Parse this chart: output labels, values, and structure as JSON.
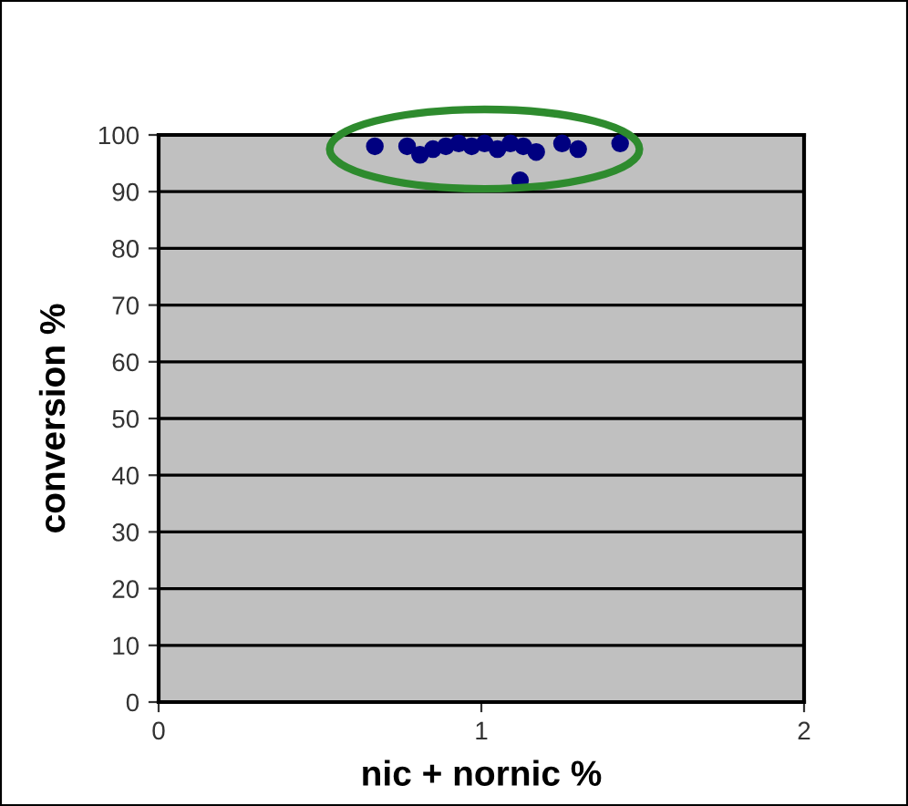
{
  "chart_data": {
    "type": "scatter",
    "xlabel": "nic + nornic %",
    "ylabel": "conversion %",
    "series": [
      {
        "color": "#000080",
        "marker": "circle",
        "x": [
          0.67,
          0.77,
          0.81,
          0.85,
          0.89,
          0.93,
          0.97,
          1.01,
          1.05,
          1.09,
          1.13,
          1.17,
          1.12,
          1.25,
          1.3,
          1.43
        ],
        "values": [
          98,
          98,
          96.5,
          97.5,
          98,
          98.5,
          98,
          98.5,
          97.5,
          98.5,
          98,
          97,
          92,
          98.5,
          97.5,
          98.5
        ]
      }
    ],
    "xlim": [
      0,
      2
    ],
    "xticks": [
      0,
      1,
      2
    ],
    "ylim": [
      0,
      100
    ],
    "yticks": [
      0,
      10,
      20,
      30,
      40,
      50,
      60,
      70,
      80,
      90,
      100
    ],
    "grid": "y"
  }
}
